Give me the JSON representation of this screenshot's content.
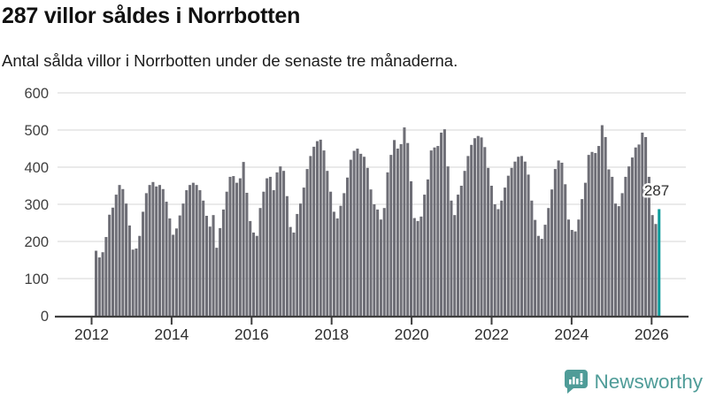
{
  "header": {
    "title": "287 villor såldes i Norrbotten",
    "subtitle": "Antal sålda villor i Norrbotten under de senaste tre månaderna."
  },
  "chart_data": {
    "type": "bar",
    "title": "287 villor såldes i Norrbotten",
    "xlabel": "",
    "ylabel": "",
    "ylim": [
      0,
      600
    ],
    "yticks": [
      0,
      100,
      200,
      300,
      400,
      500,
      600
    ],
    "xtick_years": [
      2012,
      2014,
      2016,
      2018,
      2020,
      2022,
      2024,
      2026
    ],
    "grid": true,
    "frequency": "monthly",
    "series_start": "2012-02",
    "series_end": "2026-02",
    "values": [
      175,
      157,
      171,
      212,
      272,
      291,
      326,
      352,
      341,
      302,
      243,
      178,
      181,
      215,
      280,
      330,
      352,
      360,
      348,
      352,
      341,
      307,
      262,
      218,
      235,
      270,
      302,
      338,
      352,
      358,
      352,
      338,
      310,
      269,
      240,
      271,
      183,
      236,
      286,
      334,
      374,
      376,
      358,
      370,
      414,
      331,
      255,
      224,
      215,
      290,
      334,
      370,
      374,
      338,
      386,
      402,
      390,
      322,
      239,
      224,
      274,
      302,
      345,
      395,
      430,
      455,
      470,
      474,
      445,
      390,
      334,
      280,
      262,
      296,
      330,
      372,
      420,
      444,
      450,
      436,
      428,
      398,
      340,
      300,
      286,
      259,
      290,
      386,
      433,
      473,
      450,
      462,
      507,
      465,
      362,
      263,
      255,
      267,
      326,
      367,
      445,
      453,
      457,
      493,
      502,
      402,
      310,
      271,
      326,
      350,
      390,
      430,
      460,
      478,
      484,
      480,
      454,
      398,
      350,
      300,
      287,
      310,
      345,
      377,
      398,
      415,
      428,
      430,
      415,
      380,
      310,
      258,
      215,
      207,
      245,
      290,
      340,
      395,
      418,
      412,
      354,
      259,
      231,
      227,
      259,
      314,
      358,
      433,
      441,
      438,
      457,
      513,
      481,
      394,
      374,
      302,
      295,
      330,
      374,
      402,
      426,
      453,
      461,
      493,
      481,
      374,
      271,
      247,
      287
    ],
    "highlight_last": {
      "value": 287,
      "label": "287"
    },
    "legend_position": "none"
  },
  "colors": {
    "bar": "#6e6e76",
    "highlight": "#0d9c9c",
    "grid": "#e3e3e3",
    "axis": "#3f3f3f",
    "tick_label": "#3f3f3f",
    "brand": "#4f9c98"
  },
  "footer": {
    "brand_label": "Newsworthy"
  }
}
